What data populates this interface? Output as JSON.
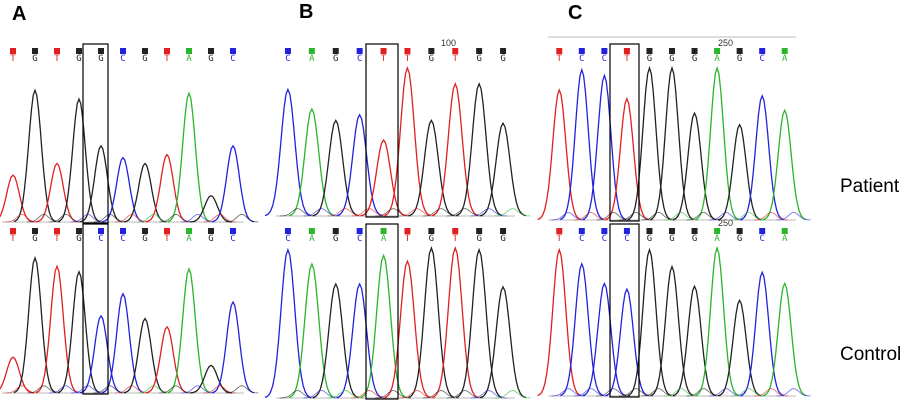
{
  "panels": [
    {
      "label": "A",
      "patient": {
        "bases": [
          "T",
          "G",
          "T",
          "G",
          "G",
          "C",
          "G",
          "T",
          "A",
          "G",
          "C"
        ],
        "highlight": 4,
        "position_label": ""
      },
      "control": {
        "bases": [
          "T",
          "G",
          "T",
          "G",
          "C",
          "C",
          "G",
          "T",
          "A",
          "G",
          "C"
        ],
        "highlight": 4,
        "position_label": ""
      }
    },
    {
      "label": "B",
      "patient": {
        "bases": [
          "C",
          "A",
          "G",
          "C",
          "T",
          "T",
          "G",
          "T",
          "G",
          "G"
        ],
        "highlight": 4,
        "position_label": "100"
      },
      "control": {
        "bases": [
          "C",
          "A",
          "G",
          "C",
          "A",
          "T",
          "G",
          "T",
          "G",
          "G"
        ],
        "highlight": 4,
        "position_label": ""
      }
    },
    {
      "label": "C",
      "patient": {
        "bases": [
          "T",
          "C",
          "C",
          "T",
          "G",
          "G",
          "G",
          "A",
          "G",
          "C",
          "A"
        ],
        "highlight": 3,
        "position_label": "250"
      },
      "control": {
        "bases": [
          "T",
          "C",
          "C",
          "C",
          "G",
          "G",
          "G",
          "A",
          "G",
          "C",
          "A"
        ],
        "highlight": 3,
        "position_label": "250"
      }
    }
  ],
  "row_labels": {
    "patient": "Patient",
    "control": "Control"
  },
  "base_colors": {
    "A": "#2ab52a",
    "C": "#2222dd",
    "G": "#222222",
    "T": "#e02020"
  }
}
